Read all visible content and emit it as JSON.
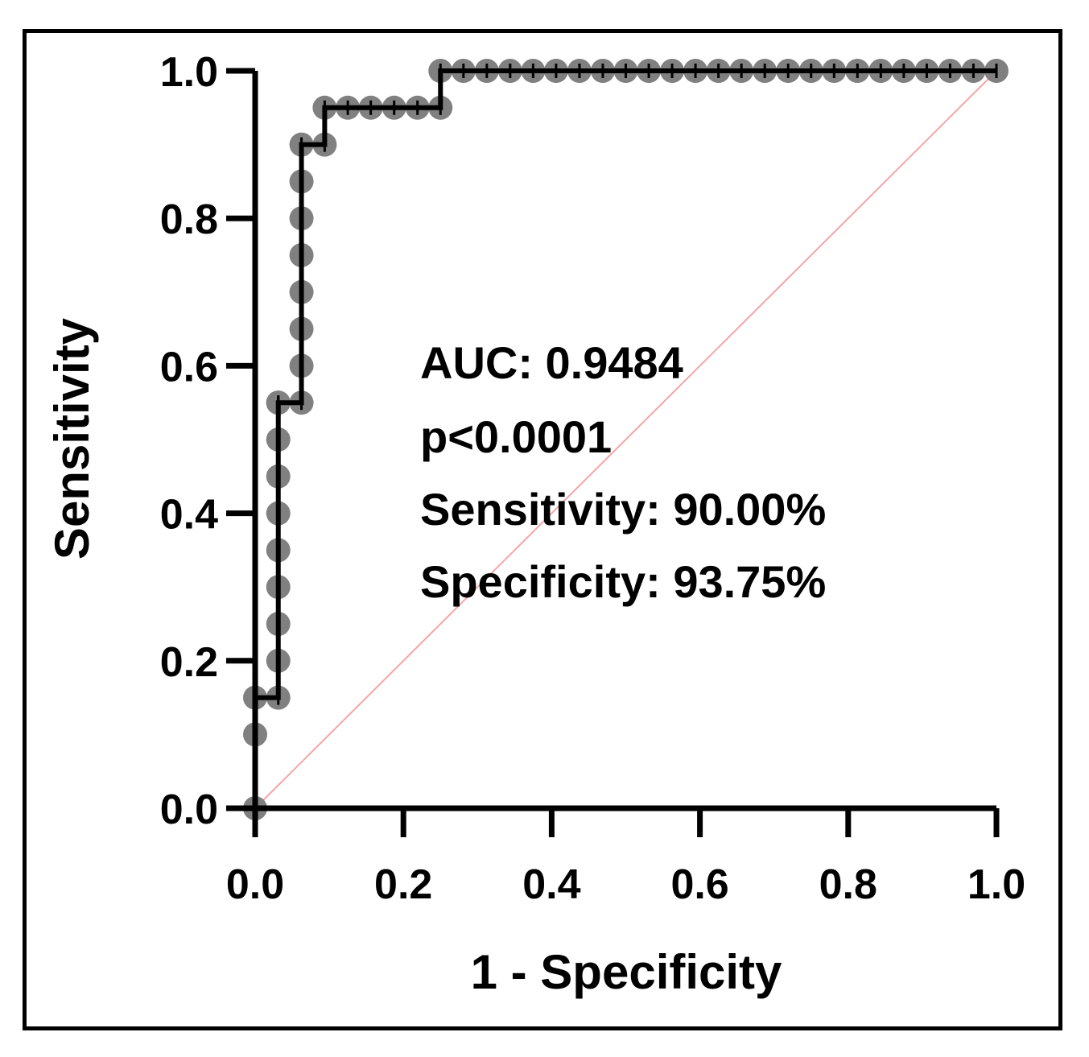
{
  "chart_data": {
    "type": "line",
    "title": "",
    "xlabel": "1 - Specificity",
    "ylabel": "Sensitivity",
    "xlim": [
      0,
      1
    ],
    "ylim": [
      0,
      1
    ],
    "x_ticks": [
      "0.0",
      "0.2",
      "0.4",
      "0.6",
      "0.8",
      "1.0"
    ],
    "y_ticks": [
      "0.0",
      "0.2",
      "0.4",
      "0.6",
      "0.8",
      "1.0"
    ],
    "grid": false,
    "legend": "none",
    "series": [
      {
        "x": [
          0,
          0,
          0,
          0.0312,
          0.0312,
          0.0312,
          0.0312,
          0.0312,
          0.0312,
          0.0312,
          0.0312,
          0.0312,
          0.0312,
          0.0312,
          0.0625,
          0.0625,
          0.0625,
          0.0625,
          0.0625,
          0.0625,
          0.0625,
          0.0625,
          0.0938,
          0.0938,
          0.125,
          0.156,
          0.1875,
          0.219,
          0.25,
          0.25,
          0.281,
          0.3125,
          0.344,
          0.375,
          0.406,
          0.4375,
          0.469,
          0.5,
          0.531,
          0.5625,
          0.594,
          0.625,
          0.656,
          0.6875,
          0.719,
          0.75,
          0.781,
          0.8125,
          0.844,
          0.875,
          0.906,
          0.9375,
          0.969,
          1.0
        ],
        "y": [
          0,
          0.1,
          0.15,
          0.15,
          0.2,
          0.25,
          0.3,
          0.35,
          0.4,
          0.45,
          0.5,
          0.55,
          0.55,
          0.55,
          0.55,
          0.6,
          0.65,
          0.7,
          0.75,
          0.8,
          0.85,
          0.9,
          0.9,
          0.95,
          0.95,
          0.95,
          0.95,
          0.95,
          0.95,
          1.0,
          1.0,
          1.0,
          1.0,
          1.0,
          1.0,
          1.0,
          1.0,
          1.0,
          1.0,
          1.0,
          1.0,
          1.0,
          1.0,
          1.0,
          1.0,
          1.0,
          1.0,
          1.0,
          1.0,
          1.0,
          1.0,
          1.0,
          1.0,
          1.0
        ],
        "line_color": "#000000",
        "marker_color": "#808080"
      }
    ],
    "reference_line": {
      "x": [
        0,
        1
      ],
      "y": [
        0,
        1
      ],
      "color": "#f4a6a6"
    },
    "annotations": [
      "AUC: 0.9484",
      "p<0.0001",
      "Sensitivity: 90.00%",
      "Specificity: 93.75%"
    ]
  }
}
